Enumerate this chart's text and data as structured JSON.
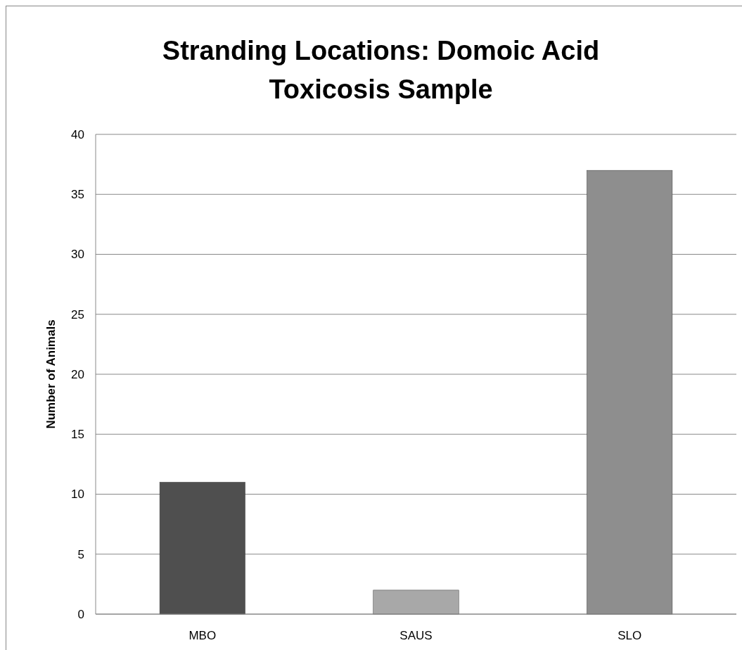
{
  "chart_data": {
    "type": "bar",
    "title": "Stranding Locations: Domoic Acid Toxicosis Sample",
    "ylabel": "Number of Animals",
    "categories": [
      "MBO",
      "SAUS",
      "SLO"
    ],
    "values": [
      11,
      2,
      37
    ],
    "colors": [
      "#4f4f4f",
      "#a8a8a8",
      "#8e8e8e"
    ],
    "ylim": [
      0,
      40
    ],
    "yticks": [
      0,
      5,
      10,
      15,
      20,
      25,
      30,
      35,
      40
    ],
    "grid": "y"
  }
}
